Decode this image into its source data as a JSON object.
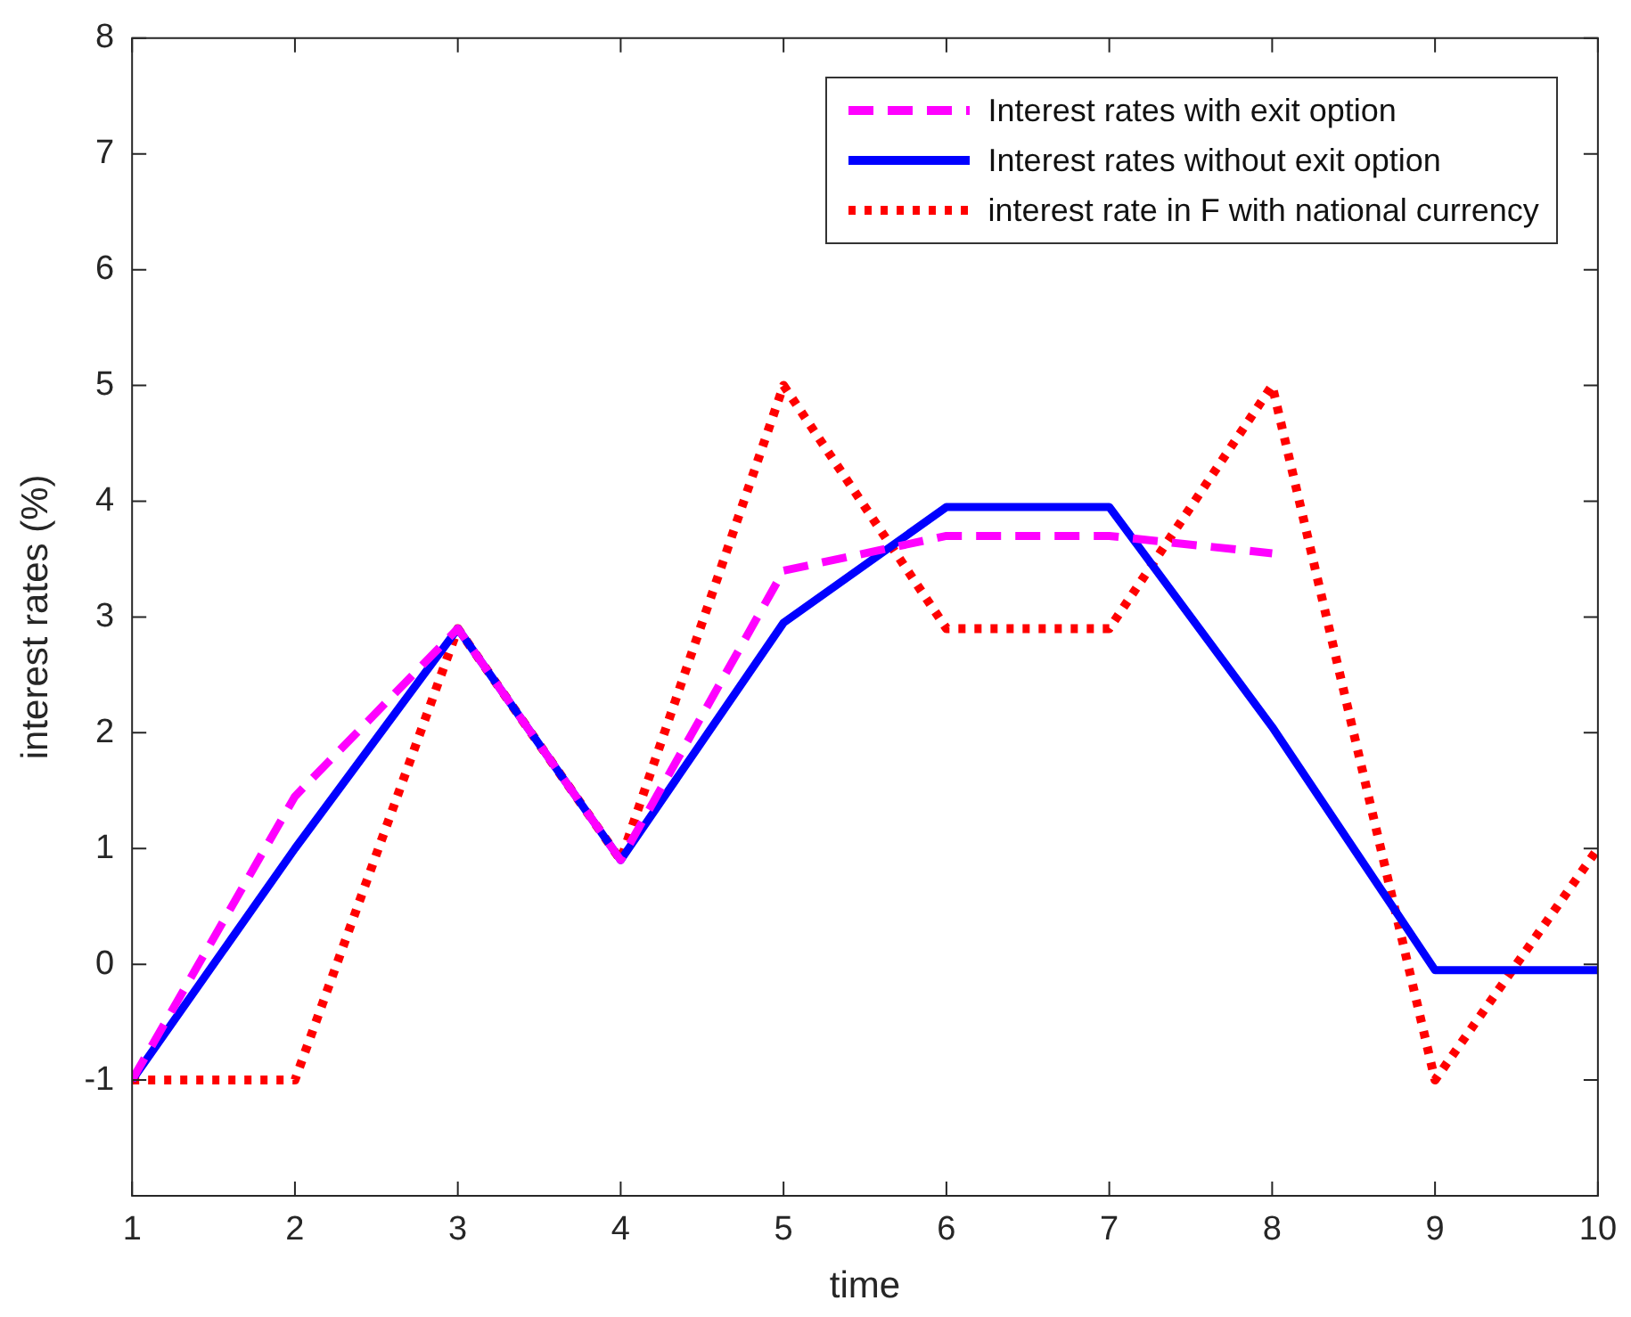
{
  "chart_data": {
    "type": "line",
    "xlabel": "time",
    "ylabel": "interest rates (%)",
    "x": [
      1,
      2,
      3,
      4,
      5,
      6,
      7,
      8,
      9,
      10
    ],
    "xlim": [
      1,
      10
    ],
    "xticks": [
      1,
      2,
      3,
      4,
      5,
      6,
      7,
      8,
      9,
      10
    ],
    "ylim": [
      -2,
      8
    ],
    "yticks": [
      {
        "value": -2,
        "label": null
      },
      -1,
      0,
      1,
      2,
      3,
      4,
      5,
      6,
      7,
      8
    ],
    "grid": false,
    "legend": "top right",
    "marker": "none",
    "series": [
      {
        "name": "Interest rates with exit option",
        "color": "#ff00ff",
        "line_style": "dashed",
        "x": [
          1,
          2,
          3,
          4,
          5,
          6,
          7,
          8
        ],
        "values": [
          -1,
          1.45,
          2.9,
          0.9,
          3.4,
          3.7,
          3.7,
          3.55
        ]
      },
      {
        "name": "Interest rates without exit option",
        "color": "#0000ff",
        "line_style": "solid",
        "values": [
          -1,
          1,
          2.9,
          0.9,
          2.95,
          3.95,
          3.95,
          2.05,
          -0.05,
          -0.05
        ]
      },
      {
        "name": "interest rate in F with national currency",
        "color": "#ff0000",
        "line_style": "dotted",
        "values": [
          -1,
          -1,
          2.9,
          0.9,
          5,
          2.9,
          2.9,
          5,
          -1,
          1
        ]
      }
    ]
  }
}
